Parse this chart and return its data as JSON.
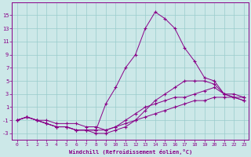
{
  "xlabel": "Windchill (Refroidissement éolien,°C)",
  "background_color": "#cce8e8",
  "line_color": "#880088",
  "grid_color": "#99cccc",
  "x": [
    0,
    1,
    2,
    3,
    4,
    5,
    6,
    7,
    8,
    9,
    10,
    11,
    12,
    13,
    14,
    15,
    16,
    17,
    18,
    19,
    20,
    21,
    22,
    23
  ],
  "series": [
    [
      -1,
      -0.5,
      -1,
      -1,
      -1.5,
      -1.5,
      -1.5,
      -2,
      -2,
      -2.5,
      -2,
      -1.5,
      -1,
      -0.5,
      0,
      0.5,
      1,
      1.5,
      2,
      2,
      2.5,
      2.5,
      2.5,
      2
    ],
    [
      -1,
      -0.5,
      -1,
      -1.5,
      -2,
      -2,
      -2.5,
      -2.5,
      -2.5,
      -2.5,
      -2,
      -1,
      0,
      1,
      1.5,
      2,
      2.5,
      2.5,
      3,
      3.5,
      4,
      3,
      3,
      2.5
    ],
    [
      -1,
      -0.5,
      -1,
      -1.5,
      -2,
      -2,
      -2.5,
      -2.5,
      -2.5,
      1.5,
      4,
      7,
      9,
      13,
      15.5,
      14.5,
      13,
      10,
      8,
      5.5,
      5,
      3,
      2.5,
      2.5
    ],
    [
      -1,
      -0.5,
      -1,
      -1.5,
      -2,
      -2,
      -2.5,
      -2.5,
      -3,
      -3,
      -2.5,
      -2,
      -1,
      0.5,
      2,
      3,
      4,
      5,
      5,
      5,
      4.5,
      3,
      2.5,
      2
    ]
  ],
  "ylim": [
    -4,
    17
  ],
  "yticks": [
    -3,
    -1,
    1,
    3,
    5,
    7,
    9,
    11,
    13,
    15
  ],
  "xlim": [
    -0.5,
    23.5
  ],
  "xticks": [
    0,
    1,
    2,
    3,
    4,
    5,
    6,
    7,
    8,
    9,
    10,
    11,
    12,
    13,
    14,
    15,
    16,
    17,
    18,
    19,
    20,
    21,
    22,
    23
  ]
}
